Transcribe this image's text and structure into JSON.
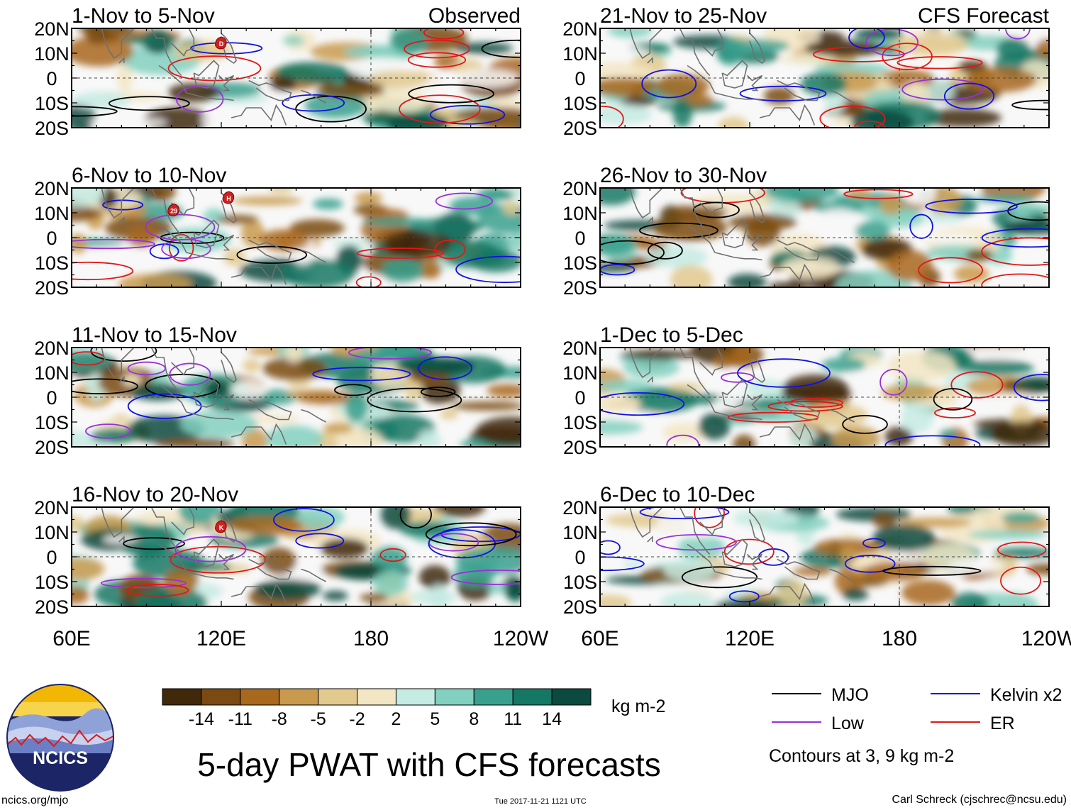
{
  "chart_data": {
    "type": "heatmap",
    "title": "5-day PWAT with CFS forecasts",
    "variable": "PWAT anomaly",
    "units": "kg m-2",
    "x_ticks": [
      "60E",
      "120E",
      "180",
      "120W"
    ],
    "y_ticks": [
      "20N",
      "10N",
      "0",
      "10S",
      "20S"
    ],
    "xlim": [
      "60E",
      "120W"
    ],
    "ylim": [
      "20S",
      "20N"
    ],
    "observed_label": "Observed",
    "forecast_label": "CFS Forecast",
    "panels": [
      {
        "period": "1-Nov to 5-Nov",
        "source": "Observed",
        "storm_labels": [
          "D"
        ]
      },
      {
        "period": "6-Nov to 10-Nov",
        "source": "Observed",
        "storm_labels": [
          "29",
          "H"
        ]
      },
      {
        "period": "11-Nov to 15-Nov",
        "source": "Observed",
        "storm_labels": []
      },
      {
        "period": "16-Nov to 20-Nov",
        "source": "Observed",
        "storm_labels": [
          "K"
        ]
      },
      {
        "period": "21-Nov to 25-Nov",
        "source": "CFS Forecast",
        "storm_labels": []
      },
      {
        "period": "26-Nov to 30-Nov",
        "source": "CFS Forecast",
        "storm_labels": []
      },
      {
        "period": "1-Dec to 5-Dec",
        "source": "CFS Forecast",
        "storm_labels": []
      },
      {
        "period": "6-Dec to 10-Dec",
        "source": "CFS Forecast",
        "storm_labels": []
      }
    ],
    "colorbar": {
      "ticks": [
        "-14",
        "-11",
        "-8",
        "-5",
        "-2",
        "2",
        "5",
        "8",
        "11",
        "14"
      ],
      "colors": [
        "#40280a",
        "#7a4a12",
        "#a8681e",
        "#c99a4e",
        "#e2c98e",
        "#f3e6c4",
        "#f8f8f8",
        "#c6ebe3",
        "#82d0c0",
        "#3aa08e",
        "#157864",
        "#0b4a3e"
      ],
      "units": "kg m-2"
    },
    "contour_legend": [
      {
        "label": "MJO",
        "color": "#000000"
      },
      {
        "label": "Kelvin x2",
        "color": "#1010e0"
      },
      {
        "label": "Low",
        "color": "#9a30d8"
      },
      {
        "label": "ER",
        "color": "#e01818"
      }
    ],
    "contour_note": "Contours at 3, 9 kg m-2"
  },
  "footer": {
    "logo_text": "NCICS",
    "url": "ncics.org/mjo",
    "timestamp": "Tue 2017-11-21 1121 UTC",
    "author": "Carl Schreck (cjschrec@ncsu.edu)"
  }
}
